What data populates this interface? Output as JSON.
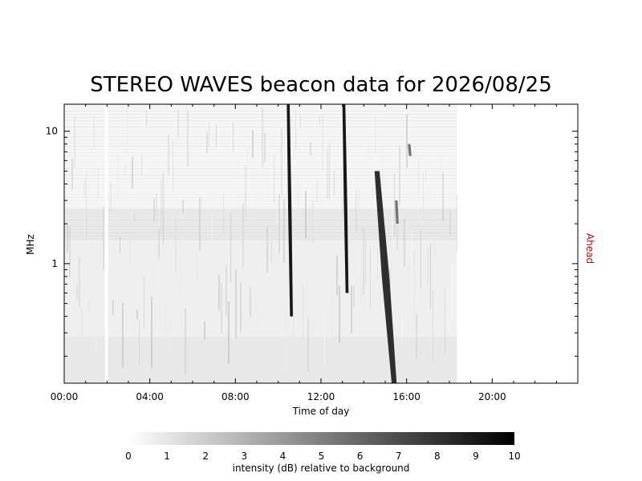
{
  "chart_data": {
    "type": "heatmap",
    "title": "STEREO WAVES beacon data for 2026/08/25",
    "xlabel": "Time of day",
    "ylabel": "MHz",
    "side_label": "Ahead",
    "x_unit": "hours",
    "xlim": [
      0,
      24
    ],
    "x_ticks": [
      0,
      4,
      8,
      12,
      16,
      20
    ],
    "x_tick_labels": [
      "00:00",
      "04:00",
      "08:00",
      "12:00",
      "16:00",
      "20:00"
    ],
    "y_scale": "log",
    "ylim": [
      0.125,
      16
    ],
    "y_ticks": [
      1,
      10
    ],
    "y_tick_labels": [
      "1",
      "10"
    ],
    "data_end_hour": 18.35,
    "data_gaps": [
      [
        1.9,
        2.05
      ]
    ],
    "bursts": [
      {
        "start": 10.45,
        "end": 10.6,
        "f_high": 16,
        "f_low": 0.4,
        "peak_db": 10
      },
      {
        "start": 13.05,
        "end": 13.2,
        "f_high": 16,
        "f_low": 0.6,
        "peak_db": 10
      },
      {
        "start": 14.6,
        "end": 15.4,
        "f_high": 5,
        "f_low": 0.125,
        "peak_db": 9
      },
      {
        "start": 15.5,
        "end": 15.55,
        "f_high": 3,
        "f_low": 2,
        "peak_db": 6
      },
      {
        "start": 16.1,
        "end": 16.15,
        "f_high": 8,
        "f_low": 6.5,
        "peak_db": 6
      }
    ],
    "colorbar": {
      "min": 0,
      "max": 10,
      "ticks": [
        "0",
        "1",
        "2",
        "3",
        "4",
        "5",
        "6",
        "7",
        "8",
        "9",
        "10"
      ],
      "label": "intensity (dB) relative to background",
      "colormap": [
        "#ffffff",
        "#000000"
      ]
    }
  }
}
